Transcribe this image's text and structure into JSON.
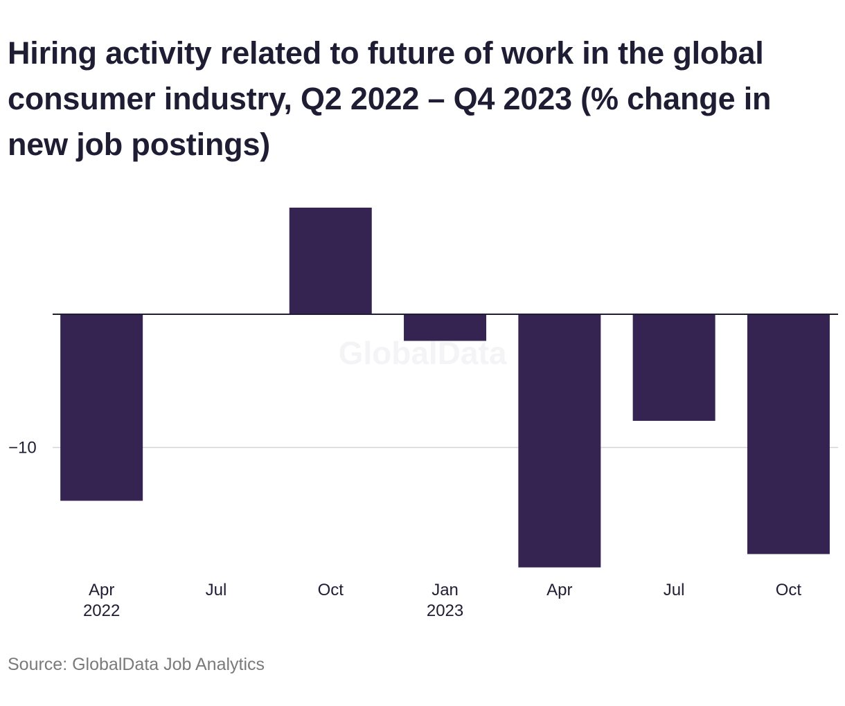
{
  "title": "Hiring activity related to future of work in the global consumer industry, Q2 2022 – Q4 2023 (% change in new job postings)",
  "source": "Source: GlobalData Job Analytics",
  "watermark": "GlobalData",
  "colors": {
    "bar": "#352452",
    "zero_line": "#1f1d33",
    "grid": "#d4d4d4",
    "text": "#1f1d33",
    "source_text": "#7a7a7a"
  },
  "chart_data": {
    "type": "bar",
    "categories": [
      "Apr 2022",
      "Jul 2022",
      "Oct 2022",
      "Jan 2023",
      "Apr 2023",
      "Jul 2023",
      "Oct 2023"
    ],
    "x_tick_labels": [
      {
        "line1": "Apr",
        "line2": "2022"
      },
      {
        "line1": "Jul",
        "line2": ""
      },
      {
        "line1": "Oct",
        "line2": ""
      },
      {
        "line1": "Jan",
        "line2": "2023"
      },
      {
        "line1": "Apr",
        "line2": ""
      },
      {
        "line1": "Jul",
        "line2": ""
      },
      {
        "line1": "Oct",
        "line2": ""
      }
    ],
    "values": [
      -14.0,
      0.0,
      8.0,
      -2.0,
      -19.0,
      -8.0,
      -18.0
    ],
    "y_ticks": [
      {
        "value": -10,
        "label": "−10"
      }
    ],
    "ylim": [
      -19.5,
      8.5
    ],
    "title": "",
    "xlabel": "",
    "ylabel": "",
    "grid": true,
    "legend": "none"
  }
}
